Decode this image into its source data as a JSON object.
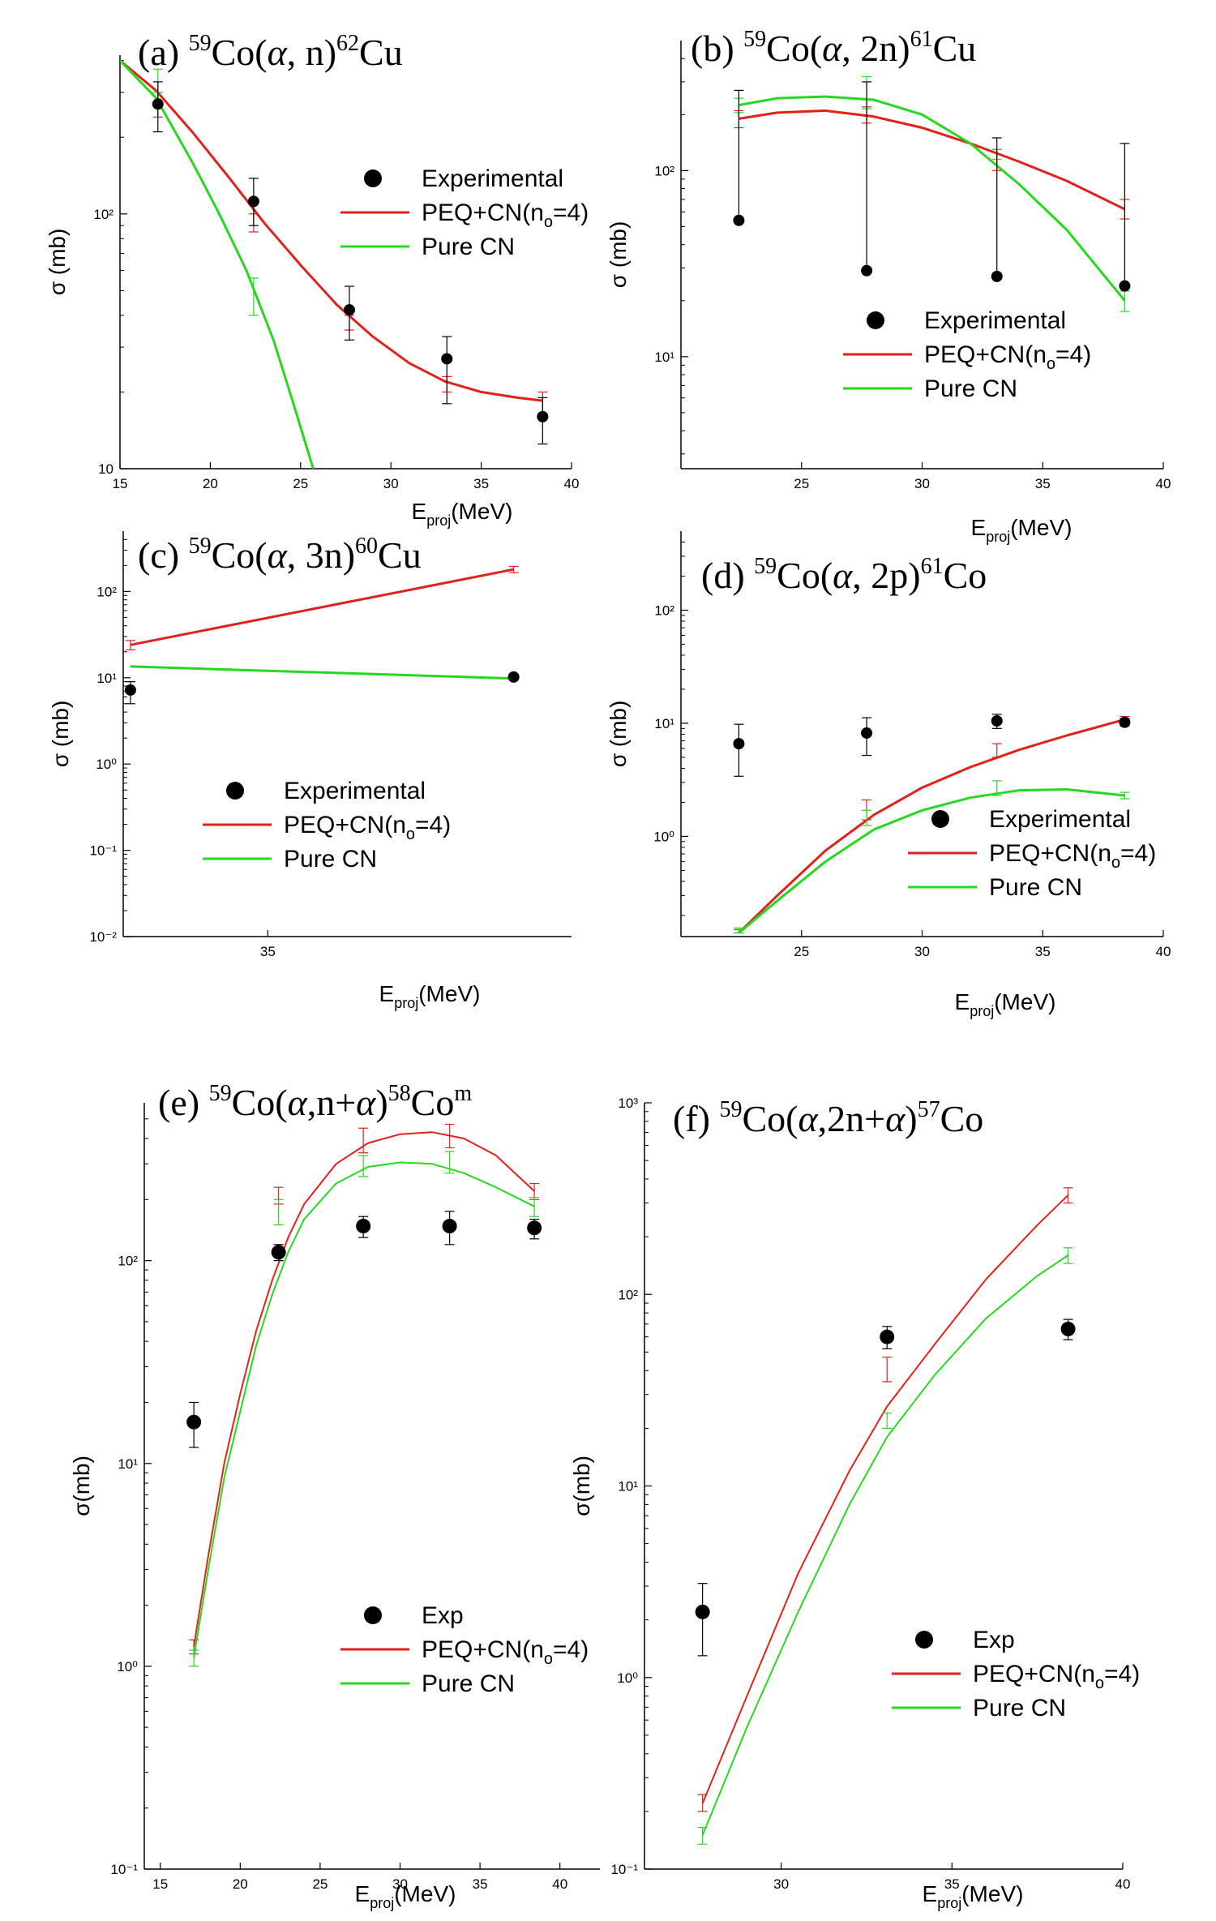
{
  "colors": {
    "experimental": "#000000",
    "peq": "#e0221b",
    "cn": "#27d820"
  },
  "chart_data": [
    {
      "id": "a",
      "type": "line",
      "title": {
        "label": "(a)",
        "pre": "59",
        "mid": "Co(",
        "greek": "α",
        "post": ", n)",
        "sup2": "62",
        "end": "Cu"
      },
      "xlabel": {
        "main": "E",
        "sub": "proj",
        "unit": "(MeV)"
      },
      "ylabel": "σ (mb)",
      "scale": "log",
      "xlim": [
        15,
        40
      ],
      "ylim": [
        10,
        420
      ],
      "xticks": [
        15,
        20,
        25,
        30,
        35,
        40
      ],
      "xtick_labels": [
        "15",
        "20",
        "25",
        "30",
        "35",
        "40"
      ],
      "yticks": [
        10,
        100
      ],
      "ytick_labels": [
        "10",
        "10²"
      ],
      "legend_placement": "right",
      "legend": [
        "Experimental",
        "PEQ+CN(n",
        "o",
        "=4)",
        "Pure CN"
      ],
      "experimental": {
        "x": [
          17.1,
          22.4,
          27.7,
          33.1,
          38.4
        ],
        "y": [
          270,
          112,
          42,
          27,
          16
        ],
        "err_lo": [
          210,
          90,
          32,
          18,
          12.5
        ],
        "err_hi": [
          330,
          138,
          52,
          33,
          19
        ]
      },
      "series": [
        {
          "key": "peq",
          "x": [
            15,
            17,
            19,
            21,
            23,
            25,
            27,
            29,
            31,
            33,
            35,
            37,
            38.4
          ],
          "y": [
            400,
            305,
            210,
            140,
            92,
            63,
            44,
            33,
            26,
            22,
            20,
            19,
            18.5
          ],
          "err_x": [
            17.1,
            22.4,
            27.7,
            33.1,
            38.4
          ],
          "err_lo": [
            240,
            85,
            35,
            20,
            16.5
          ],
          "err_hi": [
            300,
            100,
            40,
            23,
            20
          ]
        },
        {
          "key": "cn",
          "x": [
            15,
            17,
            19,
            20.5,
            22,
            23.5,
            24.5,
            25.7
          ],
          "y": [
            400,
            285,
            160,
            100,
            60,
            32,
            19,
            10
          ],
          "err_x": [
            17.1,
            22.4
          ],
          "err_lo": [
            300,
            40
          ],
          "err_hi": [
            370,
            56
          ]
        }
      ]
    },
    {
      "id": "b",
      "type": "line",
      "title": {
        "label": "(b)",
        "pre": "59",
        "mid": "Co(",
        "greek": "α",
        "post": ", 2n)",
        "sup2": "61",
        "end": "Cu"
      },
      "xlabel": {
        "main": "E",
        "sub": "proj",
        "unit": "(MeV)"
      },
      "ylabel": "σ (mb)",
      "scale": "log",
      "xlim": [
        20,
        40
      ],
      "ylim": [
        2.5,
        500
      ],
      "xticks": [
        25,
        30,
        35,
        40
      ],
      "xtick_labels": [
        "25",
        "30",
        "35",
        "40"
      ],
      "yticks": [
        10,
        100
      ],
      "ytick_labels": [
        "10¹",
        "10²"
      ],
      "legend_placement": "bottom-right",
      "legend": [
        "Experimental",
        "PEQ+CN(n",
        "o",
        "=4)",
        "Pure CN"
      ],
      "experimental": {
        "x": [
          22.4,
          27.7,
          33.1,
          38.4
        ],
        "y": [
          54,
          29,
          27,
          24
        ],
        "err_lo": [
          54,
          29,
          27,
          24
        ],
        "err_hi": [
          270,
          300,
          150,
          140
        ]
      },
      "series": [
        {
          "key": "peq",
          "x": [
            22.4,
            24,
            26,
            28,
            30,
            32,
            34,
            36,
            38.4
          ],
          "y": [
            190,
            205,
            210,
            195,
            170,
            140,
            112,
            88,
            62
          ],
          "err_x": [
            22.4,
            27.7,
            33.1,
            38.4
          ],
          "err_lo": [
            170,
            180,
            100,
            55
          ],
          "err_hi": [
            210,
            220,
            130,
            70
          ]
        },
        {
          "key": "cn",
          "x": [
            22.4,
            24,
            26,
            28,
            30,
            32,
            34,
            36,
            38.4
          ],
          "y": [
            225,
            245,
            250,
            240,
            200,
            140,
            85,
            48,
            20
          ],
          "err_x": [
            22.4,
            27.7,
            33.1,
            38.4
          ],
          "err_lo": [
            205,
            215,
            115,
            17.5
          ],
          "err_hi": [
            245,
            320,
            130,
            22.5
          ]
        }
      ]
    },
    {
      "id": "c",
      "type": "line",
      "title": {
        "label": "(c)",
        "pre": "59",
        "mid": "Co(",
        "greek": "α",
        "post": ", 3n)",
        "sup2": "60",
        "end": "Cu"
      },
      "xlabel": {
        "main": "E",
        "sub": "proj",
        "unit": "(MeV)"
      },
      "ylabel": "σ (mb)",
      "scale": "log",
      "xlim": [
        33,
        39.2
      ],
      "ylim": [
        0.01,
        500
      ],
      "xticks": [
        35
      ],
      "xtick_labels": [
        "35"
      ],
      "yticks": [
        0.01,
        0.1,
        1,
        10,
        100
      ],
      "ytick_labels": [
        "10⁻²",
        "10⁻¹",
        "10⁰",
        "10¹",
        "10²"
      ],
      "legend_placement": "center-left",
      "legend": [
        "Experimental",
        "PEQ+CN(n",
        "o",
        "=4)",
        "Pure CN"
      ],
      "experimental": {
        "x": [
          33.1,
          38.4
        ],
        "y": [
          7.2,
          10.2
        ],
        "err_lo": [
          5,
          9.5
        ],
        "err_hi": [
          9,
          11
        ]
      },
      "series": [
        {
          "key": "peq",
          "x": [
            33.1,
            38.4
          ],
          "y": [
            24,
            180
          ],
          "err_x": [
            33.1,
            38.4
          ],
          "err_lo": [
            21,
            165
          ],
          "err_hi": [
            27,
            195
          ]
        },
        {
          "key": "cn",
          "x": [
            33.1,
            38.4
          ],
          "y": [
            13.5,
            9.8
          ],
          "err_x": [],
          "err_lo": [],
          "err_hi": []
        }
      ]
    },
    {
      "id": "d",
      "type": "line",
      "title": {
        "label": "(d)",
        "pre": "59",
        "mid": "Co(",
        "greek": "α",
        "post": ", 2p)",
        "sup2": "61",
        "end": "Co"
      },
      "xlabel": {
        "main": "E",
        "sub": "proj",
        "unit": "(MeV)"
      },
      "ylabel": "σ (mb)",
      "scale": "log",
      "xlim": [
        20,
        40
      ],
      "ylim": [
        0.13,
        500
      ],
      "xticks": [
        25,
        30,
        35,
        40
      ],
      "xtick_labels": [
        "25",
        "30",
        "35",
        "40"
      ],
      "yticks": [
        1,
        10,
        100
      ],
      "ytick_labels": [
        "10⁰",
        "10¹",
        "10²"
      ],
      "legend_placement": "bottom-right",
      "legend": [
        "Experimental",
        "PEQ+CN(n",
        "o",
        "=4)",
        "Pure CN"
      ],
      "experimental": {
        "x": [
          22.4,
          27.7,
          33.1,
          38.4
        ],
        "y": [
          6.6,
          8.2,
          10.5,
          10.2
        ],
        "err_lo": [
          3.4,
          5.2,
          9,
          9.5
        ],
        "err_hi": [
          9.8,
          11.2,
          12,
          11
        ]
      },
      "series": [
        {
          "key": "peq",
          "x": [
            22.4,
            24,
            26,
            28,
            30,
            32,
            34,
            36,
            38.4
          ],
          "y": [
            0.14,
            0.3,
            0.75,
            1.55,
            2.7,
            4.1,
            5.8,
            7.8,
            10.8
          ],
          "err_x": [
            22.4,
            27.7,
            33.1,
            38.4
          ],
          "err_lo": [
            0.14,
            1.4,
            5,
            10
          ],
          "err_hi": [
            0.15,
            2.1,
            6.6,
            11.5
          ]
        },
        {
          "key": "cn",
          "x": [
            22.4,
            24,
            26,
            28,
            30,
            32,
            34,
            36,
            38.4
          ],
          "y": [
            0.14,
            0.27,
            0.6,
            1.15,
            1.7,
            2.2,
            2.55,
            2.6,
            2.3
          ],
          "err_x": [
            22.4,
            27.7,
            33.1,
            38.4
          ],
          "err_lo": [
            0.14,
            1.25,
            2.3,
            2.15
          ],
          "err_hi": [
            0.155,
            1.7,
            3.1,
            2.45
          ]
        }
      ]
    },
    {
      "id": "e",
      "type": "line",
      "title": {
        "label": "(e)",
        "pre": "59",
        "mid": "Co(",
        "greek": "α",
        "post": ",n+",
        "greek2": "α",
        "post2": ")",
        "sup2": "58",
        "end": "Co",
        "supm": "m"
      },
      "xlabel": {
        "main": "E",
        "sub": "proj",
        "unit": "(MeV)"
      },
      "ylabel": "σ(mb)",
      "scale": "log",
      "xlim": [
        14,
        42.5
      ],
      "ylim": [
        0.1,
        600
      ],
      "xticks": [
        15,
        20,
        25,
        30,
        35,
        40
      ],
      "xtick_labels": [
        "15",
        "20",
        "25",
        "30",
        "35",
        "40"
      ],
      "yticks": [
        0.1,
        1,
        10,
        100
      ],
      "ytick_labels": [
        "10⁻¹",
        "10⁰",
        "10¹",
        "10²"
      ],
      "legend_placement": "bottom-right",
      "legend": [
        "Exp",
        "PEQ+CN(n",
        "o",
        "=4)",
        "Pure CN"
      ],
      "experimental": {
        "x": [
          17.1,
          22.4,
          27.7,
          33.1,
          38.4
        ],
        "y": [
          16,
          110,
          148,
          148,
          145
        ],
        "err_lo": [
          12,
          100,
          130,
          120,
          128
        ],
        "err_hi": [
          20,
          120,
          165,
          175,
          160
        ]
      },
      "series": [
        {
          "key": "peq",
          "x": [
            17.1,
            18,
            19,
            20,
            21,
            22,
            23,
            24,
            26,
            28,
            30,
            32,
            34,
            36,
            38.4
          ],
          "y": [
            1.25,
            3.5,
            10,
            22,
            45,
            80,
            130,
            190,
            300,
            380,
            420,
            430,
            400,
            330,
            220
          ],
          "err_x": [
            17.1,
            22.4,
            27.7,
            33.1,
            38.4
          ],
          "err_lo": [
            1.15,
            190,
            340,
            360,
            200
          ],
          "err_hi": [
            1.35,
            230,
            450,
            470,
            240
          ]
        },
        {
          "key": "cn",
          "x": [
            17.1,
            18,
            19,
            20,
            21,
            22,
            23,
            24,
            26,
            28,
            30,
            32,
            34,
            36,
            38.4
          ],
          "y": [
            1.1,
            3,
            8.5,
            18,
            38,
            68,
            110,
            160,
            240,
            290,
            305,
            300,
            270,
            230,
            185
          ],
          "err_x": [
            17.1,
            22.4,
            27.7,
            33.1,
            38.4
          ],
          "err_lo": [
            1.0,
            150,
            260,
            270,
            165
          ],
          "err_hi": [
            1.2,
            200,
            330,
            345,
            205
          ]
        }
      ]
    },
    {
      "id": "f",
      "type": "line",
      "title": {
        "label": "(f)",
        "pre": "59",
        "mid": "Co(",
        "greek": "α",
        "post": ",2n+",
        "greek2": "α",
        "post2": ")",
        "sup2": "57",
        "end": "Co"
      },
      "xlabel": {
        "main": "E",
        "sub": "proj",
        "unit": "(MeV)"
      },
      "ylabel": "σ(mb)",
      "scale": "log",
      "xlim": [
        26,
        40
      ],
      "ylim": [
        0.1,
        1000
      ],
      "xticks": [
        30,
        35,
        40
      ],
      "xtick_labels": [
        "30",
        "35",
        "40"
      ],
      "yticks": [
        0.1,
        1,
        10,
        100,
        1000
      ],
      "ytick_labels": [
        "10⁻¹",
        "10⁰",
        "10¹",
        "10²",
        "10³"
      ],
      "legend_placement": "bottom-right",
      "legend": [
        "Exp",
        "PEQ+CN(n",
        "o",
        "=4)",
        "Pure CN"
      ],
      "experimental": {
        "x": [
          27.7,
          33.1,
          38.4
        ],
        "y": [
          2.2,
          60,
          66
        ],
        "err_lo": [
          1.3,
          52,
          58
        ],
        "err_hi": [
          3.1,
          68,
          74
        ]
      },
      "series": [
        {
          "key": "peq",
          "x": [
            27.7,
            29,
            30.5,
            32,
            33.1,
            34.5,
            36,
            37.5,
            38.4
          ],
          "y": [
            0.22,
            0.8,
            3.5,
            12,
            26,
            55,
            120,
            230,
            330
          ],
          "err_x": [
            27.7,
            33.1,
            38.4
          ],
          "err_lo": [
            0.2,
            35,
            300
          ],
          "err_hi": [
            0.245,
            47,
            360
          ]
        },
        {
          "key": "cn",
          "x": [
            27.7,
            29,
            30.5,
            32,
            33.1,
            34.5,
            36,
            37.5,
            38.4
          ],
          "y": [
            0.15,
            0.55,
            2.2,
            8,
            18,
            38,
            75,
            125,
            160
          ],
          "err_x": [
            27.7,
            33.1,
            38.4
          ],
          "err_lo": [
            0.135,
            20,
            145
          ],
          "err_hi": [
            0.165,
            24,
            175
          ]
        }
      ]
    }
  ]
}
